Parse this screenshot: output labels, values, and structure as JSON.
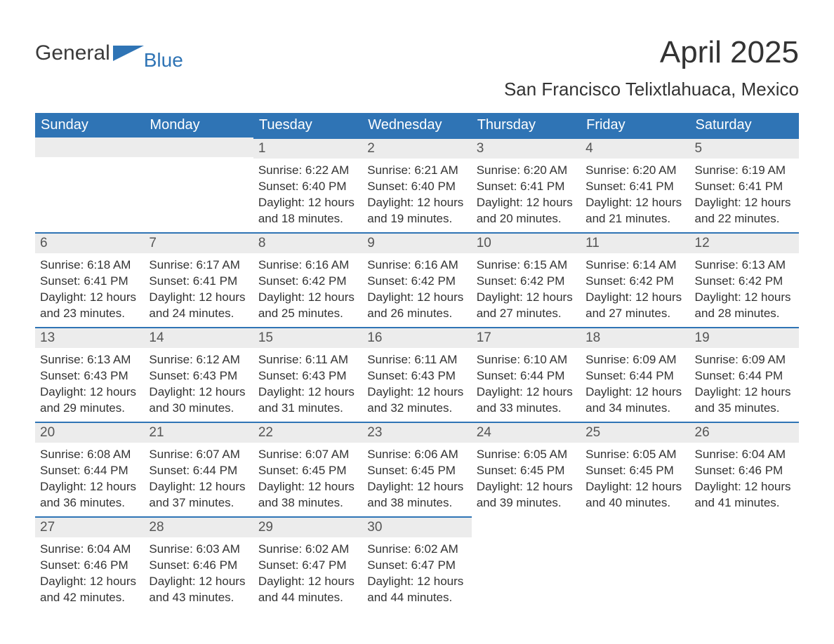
{
  "logo": {
    "main": "General",
    "sub": "Blue"
  },
  "title": "April 2025",
  "location": "San Francisco Telixtlahuaca, Mexico",
  "colors": {
    "brand": "#2f74b5",
    "header_text": "#ffffff",
    "datebar_bg": "#ececec",
    "text": "#333333"
  },
  "day_headers": [
    "Sunday",
    "Monday",
    "Tuesday",
    "Wednesday",
    "Thursday",
    "Friday",
    "Saturday"
  ],
  "weeks": [
    [
      {
        "date": "",
        "sunrise": "",
        "sunset": "",
        "daylight": ""
      },
      {
        "date": "",
        "sunrise": "",
        "sunset": "",
        "daylight": ""
      },
      {
        "date": "1",
        "sunrise": "Sunrise: 6:22 AM",
        "sunset": "Sunset: 6:40 PM",
        "daylight": "Daylight: 12 hours and 18 minutes."
      },
      {
        "date": "2",
        "sunrise": "Sunrise: 6:21 AM",
        "sunset": "Sunset: 6:40 PM",
        "daylight": "Daylight: 12 hours and 19 minutes."
      },
      {
        "date": "3",
        "sunrise": "Sunrise: 6:20 AM",
        "sunset": "Sunset: 6:41 PM",
        "daylight": "Daylight: 12 hours and 20 minutes."
      },
      {
        "date": "4",
        "sunrise": "Sunrise: 6:20 AM",
        "sunset": "Sunset: 6:41 PM",
        "daylight": "Daylight: 12 hours and 21 minutes."
      },
      {
        "date": "5",
        "sunrise": "Sunrise: 6:19 AM",
        "sunset": "Sunset: 6:41 PM",
        "daylight": "Daylight: 12 hours and 22 minutes."
      }
    ],
    [
      {
        "date": "6",
        "sunrise": "Sunrise: 6:18 AM",
        "sunset": "Sunset: 6:41 PM",
        "daylight": "Daylight: 12 hours and 23 minutes."
      },
      {
        "date": "7",
        "sunrise": "Sunrise: 6:17 AM",
        "sunset": "Sunset: 6:41 PM",
        "daylight": "Daylight: 12 hours and 24 minutes."
      },
      {
        "date": "8",
        "sunrise": "Sunrise: 6:16 AM",
        "sunset": "Sunset: 6:42 PM",
        "daylight": "Daylight: 12 hours and 25 minutes."
      },
      {
        "date": "9",
        "sunrise": "Sunrise: 6:16 AM",
        "sunset": "Sunset: 6:42 PM",
        "daylight": "Daylight: 12 hours and 26 minutes."
      },
      {
        "date": "10",
        "sunrise": "Sunrise: 6:15 AM",
        "sunset": "Sunset: 6:42 PM",
        "daylight": "Daylight: 12 hours and 27 minutes."
      },
      {
        "date": "11",
        "sunrise": "Sunrise: 6:14 AM",
        "sunset": "Sunset: 6:42 PM",
        "daylight": "Daylight: 12 hours and 27 minutes."
      },
      {
        "date": "12",
        "sunrise": "Sunrise: 6:13 AM",
        "sunset": "Sunset: 6:42 PM",
        "daylight": "Daylight: 12 hours and 28 minutes."
      }
    ],
    [
      {
        "date": "13",
        "sunrise": "Sunrise: 6:13 AM",
        "sunset": "Sunset: 6:43 PM",
        "daylight": "Daylight: 12 hours and 29 minutes."
      },
      {
        "date": "14",
        "sunrise": "Sunrise: 6:12 AM",
        "sunset": "Sunset: 6:43 PM",
        "daylight": "Daylight: 12 hours and 30 minutes."
      },
      {
        "date": "15",
        "sunrise": "Sunrise: 6:11 AM",
        "sunset": "Sunset: 6:43 PM",
        "daylight": "Daylight: 12 hours and 31 minutes."
      },
      {
        "date": "16",
        "sunrise": "Sunrise: 6:11 AM",
        "sunset": "Sunset: 6:43 PM",
        "daylight": "Daylight: 12 hours and 32 minutes."
      },
      {
        "date": "17",
        "sunrise": "Sunrise: 6:10 AM",
        "sunset": "Sunset: 6:44 PM",
        "daylight": "Daylight: 12 hours and 33 minutes."
      },
      {
        "date": "18",
        "sunrise": "Sunrise: 6:09 AM",
        "sunset": "Sunset: 6:44 PM",
        "daylight": "Daylight: 12 hours and 34 minutes."
      },
      {
        "date": "19",
        "sunrise": "Sunrise: 6:09 AM",
        "sunset": "Sunset: 6:44 PM",
        "daylight": "Daylight: 12 hours and 35 minutes."
      }
    ],
    [
      {
        "date": "20",
        "sunrise": "Sunrise: 6:08 AM",
        "sunset": "Sunset: 6:44 PM",
        "daylight": "Daylight: 12 hours and 36 minutes."
      },
      {
        "date": "21",
        "sunrise": "Sunrise: 6:07 AM",
        "sunset": "Sunset: 6:44 PM",
        "daylight": "Daylight: 12 hours and 37 minutes."
      },
      {
        "date": "22",
        "sunrise": "Sunrise: 6:07 AM",
        "sunset": "Sunset: 6:45 PM",
        "daylight": "Daylight: 12 hours and 38 minutes."
      },
      {
        "date": "23",
        "sunrise": "Sunrise: 6:06 AM",
        "sunset": "Sunset: 6:45 PM",
        "daylight": "Daylight: 12 hours and 38 minutes."
      },
      {
        "date": "24",
        "sunrise": "Sunrise: 6:05 AM",
        "sunset": "Sunset: 6:45 PM",
        "daylight": "Daylight: 12 hours and 39 minutes."
      },
      {
        "date": "25",
        "sunrise": "Sunrise: 6:05 AM",
        "sunset": "Sunset: 6:45 PM",
        "daylight": "Daylight: 12 hours and 40 minutes."
      },
      {
        "date": "26",
        "sunrise": "Sunrise: 6:04 AM",
        "sunset": "Sunset: 6:46 PM",
        "daylight": "Daylight: 12 hours and 41 minutes."
      }
    ],
    [
      {
        "date": "27",
        "sunrise": "Sunrise: 6:04 AM",
        "sunset": "Sunset: 6:46 PM",
        "daylight": "Daylight: 12 hours and 42 minutes."
      },
      {
        "date": "28",
        "sunrise": "Sunrise: 6:03 AM",
        "sunset": "Sunset: 6:46 PM",
        "daylight": "Daylight: 12 hours and 43 minutes."
      },
      {
        "date": "29",
        "sunrise": "Sunrise: 6:02 AM",
        "sunset": "Sunset: 6:47 PM",
        "daylight": "Daylight: 12 hours and 44 minutes."
      },
      {
        "date": "30",
        "sunrise": "Sunrise: 6:02 AM",
        "sunset": "Sunset: 6:47 PM",
        "daylight": "Daylight: 12 hours and 44 minutes."
      },
      {
        "date": "",
        "sunrise": "",
        "sunset": "",
        "daylight": ""
      },
      {
        "date": "",
        "sunrise": "",
        "sunset": "",
        "daylight": ""
      },
      {
        "date": "",
        "sunrise": "",
        "sunset": "",
        "daylight": ""
      }
    ]
  ]
}
